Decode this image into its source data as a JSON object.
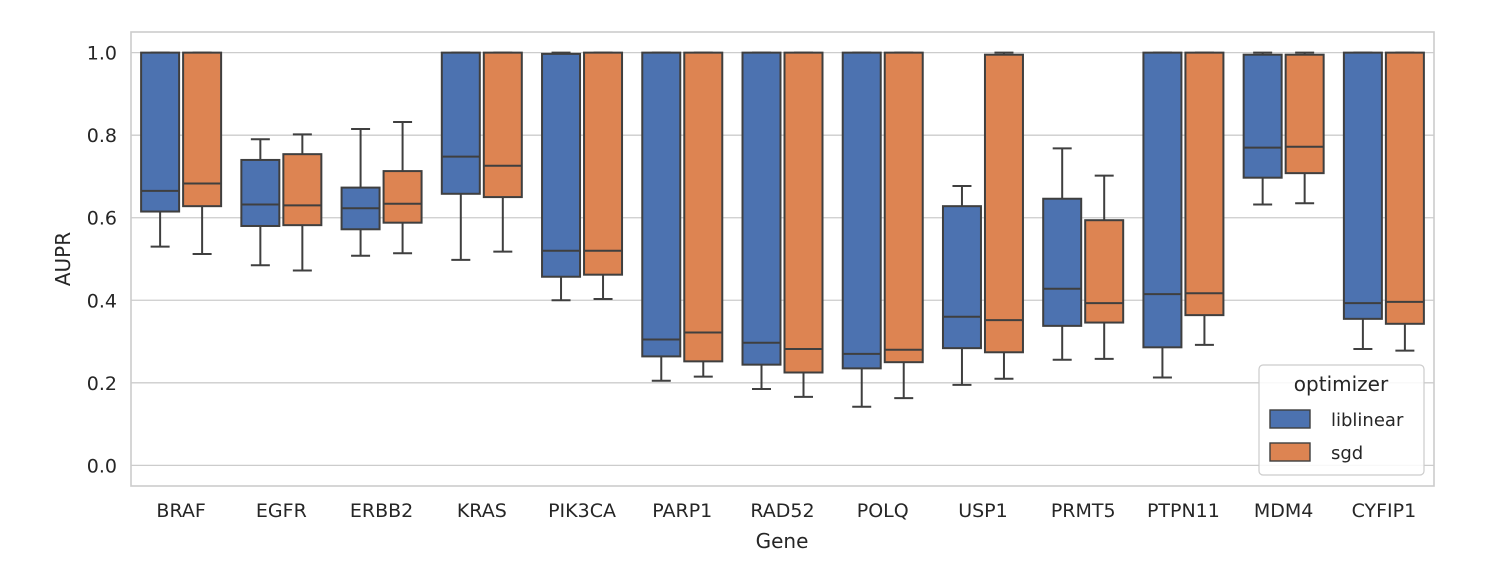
{
  "chart_data": {
    "type": "box",
    "title": "",
    "xlabel": "Gene",
    "ylabel": "AUPR",
    "ylim": [
      -0.05,
      1.05
    ],
    "yticks": [
      "0.0",
      "0.2",
      "0.4",
      "0.6",
      "0.8",
      "1.0"
    ],
    "grid": "horizontal",
    "categories": [
      "BRAF",
      "EGFR",
      "ERBB2",
      "KRAS",
      "PIK3CA",
      "PARP1",
      "RAD52",
      "POLQ",
      "USP1",
      "PRMT5",
      "PTPN11",
      "MDM4",
      "CYFIP1"
    ],
    "legend": {
      "title": "optimizer",
      "position": "lower-right"
    },
    "series": [
      {
        "name": "liblinear",
        "color": "#4c72b0",
        "boxes": [
          {
            "whislo": 0.53,
            "q1": 0.615,
            "med": 0.665,
            "q3": 1.0,
            "whishi": 1.0
          },
          {
            "whislo": 0.485,
            "q1": 0.58,
            "med": 0.632,
            "q3": 0.74,
            "whishi": 0.79
          },
          {
            "whislo": 0.508,
            "q1": 0.572,
            "med": 0.623,
            "q3": 0.673,
            "whishi": 0.815
          },
          {
            "whislo": 0.498,
            "q1": 0.658,
            "med": 0.748,
            "q3": 1.0,
            "whishi": 1.0
          },
          {
            "whislo": 0.4,
            "q1": 0.457,
            "med": 0.52,
            "q3": 0.997,
            "whishi": 1.0
          },
          {
            "whislo": 0.205,
            "q1": 0.264,
            "med": 0.305,
            "q3": 1.0,
            "whishi": 1.0
          },
          {
            "whislo": 0.185,
            "q1": 0.244,
            "med": 0.297,
            "q3": 1.0,
            "whishi": 1.0
          },
          {
            "whislo": 0.142,
            "q1": 0.235,
            "med": 0.27,
            "q3": 1.0,
            "whishi": 1.0
          },
          {
            "whislo": 0.195,
            "q1": 0.284,
            "med": 0.36,
            "q3": 0.628,
            "whishi": 0.677
          },
          {
            "whislo": 0.256,
            "q1": 0.338,
            "med": 0.428,
            "q3": 0.646,
            "whishi": 0.768
          },
          {
            "whislo": 0.213,
            "q1": 0.286,
            "med": 0.415,
            "q3": 1.0,
            "whishi": 1.0
          },
          {
            "whislo": 0.632,
            "q1": 0.697,
            "med": 0.77,
            "q3": 0.995,
            "whishi": 1.0
          },
          {
            "whislo": 0.282,
            "q1": 0.355,
            "med": 0.393,
            "q3": 1.0,
            "whishi": 1.0
          }
        ]
      },
      {
        "name": "sgd",
        "color": "#dd8452",
        "boxes": [
          {
            "whislo": 0.512,
            "q1": 0.628,
            "med": 0.683,
            "q3": 1.0,
            "whishi": 1.0
          },
          {
            "whislo": 0.472,
            "q1": 0.582,
            "med": 0.63,
            "q3": 0.754,
            "whishi": 0.802
          },
          {
            "whislo": 0.514,
            "q1": 0.588,
            "med": 0.634,
            "q3": 0.713,
            "whishi": 0.832
          },
          {
            "whislo": 0.518,
            "q1": 0.65,
            "med": 0.726,
            "q3": 1.0,
            "whishi": 1.0
          },
          {
            "whislo": 0.403,
            "q1": 0.462,
            "med": 0.52,
            "q3": 1.0,
            "whishi": 1.0
          },
          {
            "whislo": 0.215,
            "q1": 0.252,
            "med": 0.322,
            "q3": 1.0,
            "whishi": 1.0
          },
          {
            "whislo": 0.166,
            "q1": 0.225,
            "med": 0.282,
            "q3": 1.0,
            "whishi": 1.0
          },
          {
            "whislo": 0.163,
            "q1": 0.25,
            "med": 0.28,
            "q3": 1.0,
            "whishi": 1.0
          },
          {
            "whislo": 0.21,
            "q1": 0.274,
            "med": 0.352,
            "q3": 0.995,
            "whishi": 1.0
          },
          {
            "whislo": 0.258,
            "q1": 0.346,
            "med": 0.393,
            "q3": 0.594,
            "whishi": 0.702
          },
          {
            "whislo": 0.292,
            "q1": 0.364,
            "med": 0.417,
            "q3": 1.0,
            "whishi": 1.0
          },
          {
            "whislo": 0.635,
            "q1": 0.708,
            "med": 0.772,
            "q3": 0.995,
            "whishi": 1.0
          },
          {
            "whislo": 0.278,
            "q1": 0.343,
            "med": 0.396,
            "q3": 1.0,
            "whishi": 1.0
          }
        ]
      }
    ]
  }
}
